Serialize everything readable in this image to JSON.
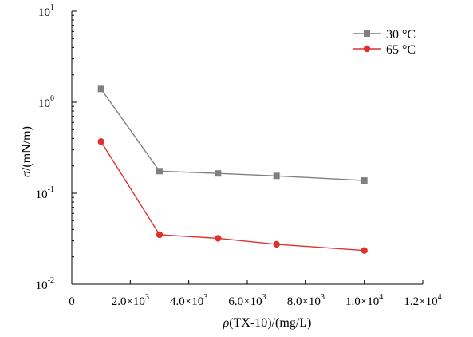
{
  "chart_data": {
    "type": "line",
    "xlabel_symbol": "ρ",
    "xlabel_rest": "(TX-10)/(mg/L)",
    "ylabel_symbol": "σ",
    "ylabel_rest": "/(mN/m)",
    "xlim": [
      0,
      12000
    ],
    "ylim": [
      0.01,
      10
    ],
    "yscale": "log",
    "grid": false,
    "legend_position": "top-right",
    "x_ticks": [
      {
        "value": 0,
        "base": "0",
        "exp": ""
      },
      {
        "value": 2000,
        "base": "2.0×10",
        "exp": "3"
      },
      {
        "value": 4000,
        "base": "4.0×10",
        "exp": "3"
      },
      {
        "value": 6000,
        "base": "6.0×10",
        "exp": "3"
      },
      {
        "value": 8000,
        "base": "8.0×10",
        "exp": "3"
      },
      {
        "value": 10000,
        "base": "1.0×10",
        "exp": "4"
      },
      {
        "value": 12000,
        "base": "1.2×10",
        "exp": "4"
      }
    ],
    "y_ticks": [
      {
        "value": 0.01,
        "base": "10",
        "exp": "-2"
      },
      {
        "value": 0.1,
        "base": "10",
        "exp": "-1"
      },
      {
        "value": 1,
        "base": "10",
        "exp": "0"
      },
      {
        "value": 10,
        "base": "10",
        "exp": "1"
      }
    ],
    "x": [
      1000,
      3000,
      5000,
      7000,
      10000
    ],
    "series": [
      {
        "name": "30 °C",
        "color": "#808080",
        "marker": "square",
        "values": [
          1.4,
          0.175,
          0.165,
          0.155,
          0.138
        ]
      },
      {
        "name": "65 °C",
        "color": "#e0312f",
        "marker": "circle",
        "values": [
          0.37,
          0.035,
          0.032,
          0.0275,
          0.0235
        ]
      }
    ]
  }
}
